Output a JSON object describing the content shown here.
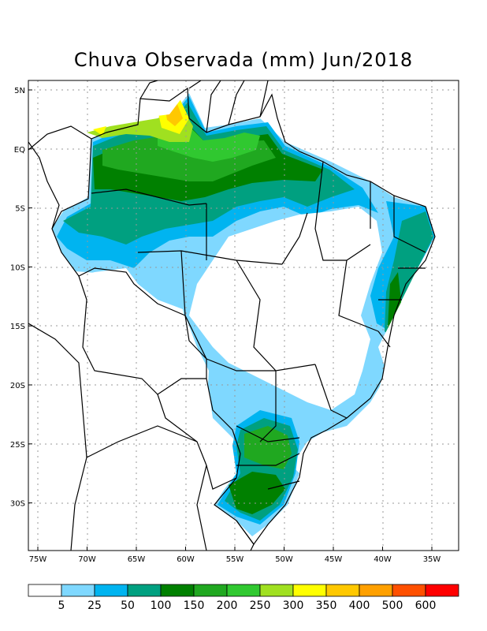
{
  "title": "Chuva Observada (mm) Jun/2018",
  "map": {
    "lon_ticks": [
      "75W",
      "70W",
      "65W",
      "60W",
      "55W",
      "50W",
      "45W",
      "40W",
      "35W"
    ],
    "lat_ticks": [
      "5N",
      "EQ",
      "5S",
      "10S",
      "15S",
      "20S",
      "25S",
      "30S"
    ]
  },
  "legend": {
    "labels": [
      "5",
      "25",
      "50",
      "100",
      "150",
      "200",
      "250",
      "300",
      "350",
      "400",
      "500",
      "600"
    ],
    "colors": [
      "#ffffff",
      "#7fd8ff",
      "#00b4f0",
      "#00a080",
      "#008000",
      "#20a820",
      "#30c830",
      "#a0e020",
      "#ffff00",
      "#ffc800",
      "#ffa000",
      "#ff5000",
      "#ff0000"
    ]
  }
}
